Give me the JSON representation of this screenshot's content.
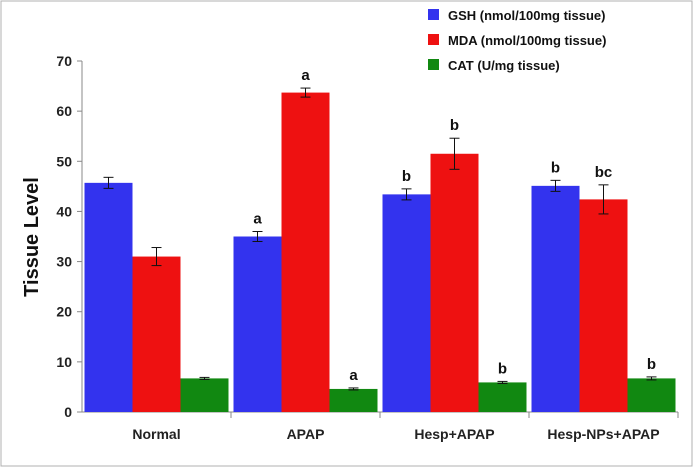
{
  "chart_data": {
    "type": "bar",
    "title": "",
    "xlabel": "",
    "ylabel": "Tissue Level",
    "ylim": [
      0,
      70
    ],
    "yticks": [
      0,
      10,
      20,
      30,
      40,
      50,
      60,
      70
    ],
    "grid": false,
    "legend_position": "top-right",
    "categories": [
      "Normal",
      "APAP",
      "Hesp+APAP",
      "Hesp-NPs+APAP"
    ],
    "series": [
      {
        "name": "GSH (nmol/100mg tissue)",
        "color": "#3333ee",
        "values": [
          45.7,
          35.0,
          43.4,
          45.1
        ],
        "errors": [
          1.1,
          1.0,
          1.1,
          1.1
        ],
        "annotations": [
          "",
          "a",
          "b",
          "b"
        ]
      },
      {
        "name": "MDA (nmol/100mg tissue)",
        "color": "#ee1111",
        "values": [
          31.0,
          63.7,
          51.5,
          42.4
        ],
        "errors": [
          1.8,
          0.9,
          3.1,
          2.9
        ],
        "annotations": [
          "",
          "a",
          "b",
          "bc"
        ]
      },
      {
        "name": "CAT (U/mg tissue)",
        "color": "#118811",
        "values": [
          6.7,
          4.6,
          5.9,
          6.7
        ],
        "errors": [
          0.2,
          0.2,
          0.2,
          0.3
        ],
        "annotations": [
          "",
          "a",
          "b",
          "b"
        ]
      }
    ]
  }
}
